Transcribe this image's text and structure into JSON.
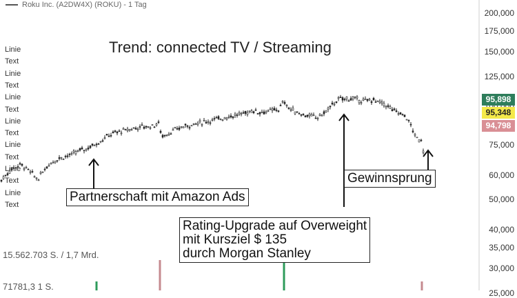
{
  "legend": {
    "text": "Roku Inc. (A2DW4X) (ROKU) - 1 Tag"
  },
  "chart_title": "Trend: connected TV / Streaming",
  "sidebar_labels": [
    "Linie",
    "Text",
    "Linie",
    "Text",
    "Linie",
    "Text",
    "Linie",
    "Text",
    "Linie",
    "Text",
    "Linie",
    "Text",
    "Linie",
    "Text"
  ],
  "volume_labels": [
    "15.562.703 S. / 1,7 Mrd.",
    "71781,3 1 S."
  ],
  "price_badges": [
    {
      "value": "95,898",
      "bg": "#2e7d5b",
      "fg": "#ffffff"
    },
    {
      "value": "95,348",
      "bg": "#f4e94a",
      "fg": "#222222"
    },
    {
      "value": "94,798",
      "bg": "#d98f95",
      "fg": "#ffffff"
    }
  ],
  "annotations": [
    {
      "id": "amazon",
      "text": "Partnerschaft mit Amazon Ads"
    },
    {
      "id": "upgrade",
      "text": "Rating-Upgrade auf Overweight\nmit Kursziel $ 135\ndurch Morgan Stanley"
    },
    {
      "id": "earnings",
      "text": "Gewinnsprung"
    }
  ],
  "chart_data": {
    "type": "candlestick",
    "title": "Trend: connected TV / Streaming",
    "y_scale": "log",
    "y_ticks": [
      "200,000",
      "175,000",
      "150,000",
      "125,000",
      "100,000",
      "75,000",
      "60,000",
      "50,000",
      "40,000",
      "35,000",
      "30,000",
      "25,000"
    ],
    "y_tick_values": [
      200,
      175,
      150,
      125,
      100,
      75,
      60,
      50,
      40,
      35,
      30,
      25
    ],
    "close_path": [
      [
        0,
        57
      ],
      [
        8,
        60
      ],
      [
        18,
        63
      ],
      [
        30,
        65
      ],
      [
        42,
        62
      ],
      [
        55,
        58
      ],
      [
        65,
        63
      ],
      [
        75,
        66
      ],
      [
        85,
        68
      ],
      [
        95,
        69
      ],
      [
        105,
        70
      ],
      [
        115,
        72
      ],
      [
        125,
        73
      ],
      [
        135,
        75
      ],
      [
        145,
        77
      ],
      [
        155,
        80
      ],
      [
        165,
        82
      ],
      [
        175,
        83
      ],
      [
        185,
        84
      ],
      [
        195,
        85
      ],
      [
        205,
        86
      ],
      [
        215,
        86
      ],
      [
        225,
        87
      ],
      [
        230,
        88
      ],
      [
        235,
        80
      ],
      [
        245,
        82
      ],
      [
        255,
        84
      ],
      [
        265,
        86
      ],
      [
        275,
        87
      ],
      [
        285,
        88
      ],
      [
        295,
        89
      ],
      [
        305,
        90
      ],
      [
        315,
        91
      ],
      [
        325,
        92
      ],
      [
        335,
        93
      ],
      [
        345,
        94
      ],
      [
        355,
        95
      ],
      [
        365,
        97
      ],
      [
        375,
        96
      ],
      [
        385,
        96
      ],
      [
        395,
        97
      ],
      [
        405,
        98
      ],
      [
        412,
        104
      ],
      [
        420,
        98
      ],
      [
        430,
        96
      ],
      [
        440,
        94
      ],
      [
        450,
        93
      ],
      [
        460,
        92
      ],
      [
        470,
        95
      ],
      [
        480,
        100
      ],
      [
        490,
        105
      ],
      [
        500,
        106
      ],
      [
        510,
        106
      ],
      [
        520,
        105
      ],
      [
        530,
        104
      ],
      [
        540,
        105
      ],
      [
        550,
        103
      ],
      [
        560,
        101
      ],
      [
        570,
        97
      ],
      [
        580,
        95
      ],
      [
        590,
        92
      ],
      [
        597,
        86
      ],
      [
        602,
        80
      ],
      [
        608,
        78
      ],
      [
        612,
        78
      ],
      [
        614,
        72
      ]
    ],
    "volume_bars": [
      {
        "x": 140,
        "level": "high",
        "color": "#2e9b5b"
      },
      {
        "x": 232,
        "level": "very-high",
        "color": "#c58a8f"
      },
      {
        "x": 412,
        "level": "very-high",
        "color": "#2e9b5b"
      },
      {
        "x": 612,
        "level": "high",
        "color": "#c58a8f"
      }
    ]
  }
}
